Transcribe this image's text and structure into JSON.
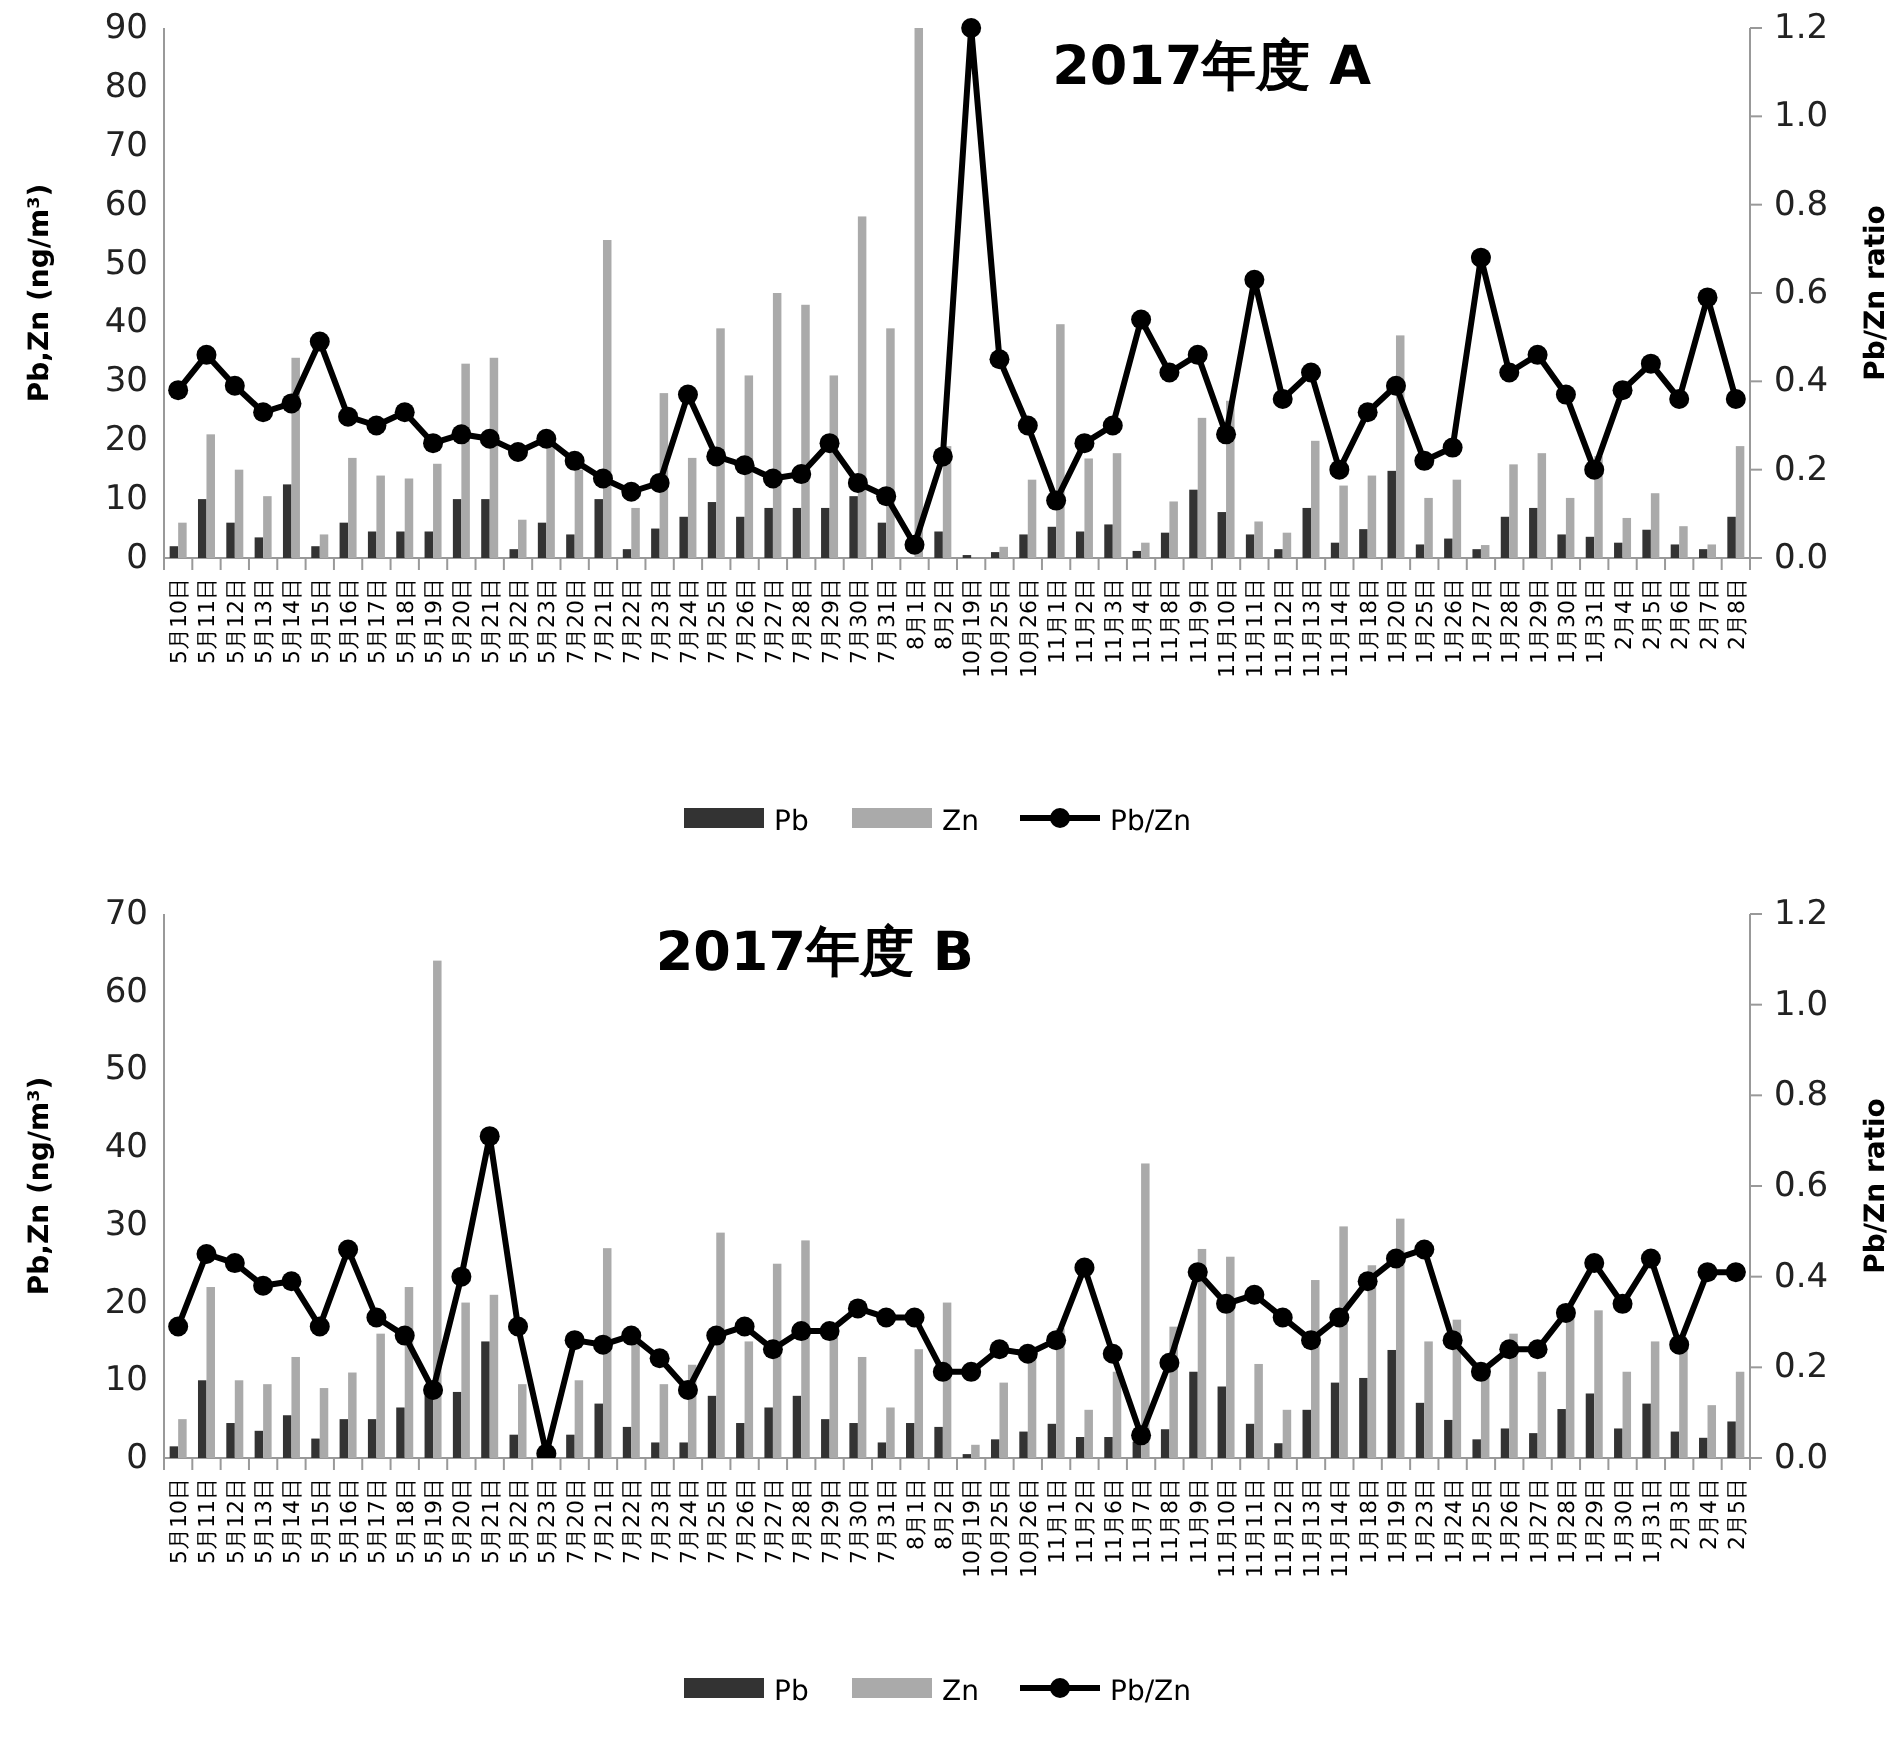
{
  "chart_data": [
    {
      "type": "bar",
      "title": "2017年度 A",
      "ylabel": "Pb,Zn (ng/m³)",
      "y2label": "Pb/Zn ratio",
      "legend": "bottom",
      "grid": false,
      "categories": [
        "5月10日",
        "5月11日",
        "5月12日",
        "5月13日",
        "5月14日",
        "5月15日",
        "5月16日",
        "5月17日",
        "5月18日",
        "5月19日",
        "5月20日",
        "5月21日",
        "5月22日",
        "5月23日",
        "7月20日",
        "7月21日",
        "7月22日",
        "7月23日",
        "7月24日",
        "7月25日",
        "7月26日",
        "7月27日",
        "7月28日",
        "7月29日",
        "7月30日",
        "7月31日",
        "8月1日",
        "8月2日",
        "10月19日",
        "10月25日",
        "10月26日",
        "11月1日",
        "11月2日",
        "11月3日",
        "11月4日",
        "11月8日",
        "11月9日",
        "11月10日",
        "11月11日",
        "11月12日",
        "11月13日",
        "11月14日",
        "1月18日",
        "1月20日",
        "1月25日",
        "1月26日",
        "1月27日",
        "1月28日",
        "1月29日",
        "1月30日",
        "1月31日",
        "2月4日",
        "2月5日",
        "2月6日",
        "2月7日",
        "2月8日"
      ],
      "ylim": [
        0,
        90
      ],
      "yticks": [
        0,
        10,
        20,
        30,
        40,
        50,
        60,
        70,
        80,
        90
      ],
      "y2lim": [
        0,
        1.2
      ],
      "y2ticks": [
        {
          "value": 0,
          "label": "0.0"
        },
        {
          "value": 0.2,
          "label": "0.2"
        },
        {
          "value": 0.4,
          "label": "0.4"
        },
        {
          "value": 0.6,
          "label": "0.6"
        },
        {
          "value": 0.8,
          "label": "0.8"
        },
        {
          "value": 1.0,
          "label": "1.0"
        },
        {
          "value": 1.2,
          "label": "1.2"
        }
      ],
      "series": [
        {
          "name": "Pb",
          "type": "bar",
          "color": "#333333",
          "values": [
            2,
            10,
            6,
            3.5,
            12.5,
            2,
            6,
            4.5,
            4.5,
            4.5,
            10,
            10,
            1.5,
            6,
            4,
            10,
            1.5,
            5,
            7,
            9.5,
            7,
            8.5,
            8.5,
            8.5,
            10.5,
            6,
            null,
            4.5,
            0.5,
            1,
            4,
            5.3,
            4.5,
            5.7,
            1.2,
            4.3,
            11.6,
            7.8,
            4,
            1.5,
            8.5,
            2.6,
            4.9,
            14.8,
            2.3,
            3.3,
            1.5,
            7,
            8.5,
            4,
            3.6,
            2.6,
            4.8,
            2.3,
            1.5,
            7
          ]
        },
        {
          "name": "Zn",
          "type": "bar",
          "color": "#aaaaaa",
          "values": [
            6,
            21,
            15,
            10.5,
            34,
            4,
            17,
            14,
            13.5,
            16,
            33,
            34,
            6.5,
            20,
            15,
            54,
            8.5,
            28,
            17,
            39,
            31,
            45,
            43,
            31,
            58,
            39,
            90,
            19,
            null,
            1.9,
            13.3,
            39.7,
            16.9,
            17.8,
            2.6,
            9.6,
            23.8,
            26.7,
            6.2,
            4.3,
            19.9,
            12.3,
            14,
            37.8,
            10.2,
            13.3,
            2.2,
            15.9,
            17.8,
            10.2,
            17.3,
            6.8,
            11,
            5.4,
            2.3,
            19
          ]
        },
        {
          "name": "Pb/Zn",
          "type": "line",
          "axis": "y2",
          "color": "#000000",
          "marker": "circle",
          "values": [
            0.38,
            0.46,
            0.39,
            0.33,
            0.35,
            0.49,
            0.32,
            0.3,
            0.33,
            0.26,
            0.28,
            0.27,
            0.24,
            0.27,
            0.22,
            0.18,
            0.15,
            0.17,
            0.37,
            0.23,
            0.21,
            0.18,
            0.19,
            0.26,
            0.17,
            0.14,
            0.03,
            0.23,
            1.2,
            0.45,
            0.3,
            0.13,
            0.26,
            0.3,
            0.54,
            0.42,
            0.46,
            0.28,
            0.63,
            0.36,
            0.42,
            0.2,
            0.33,
            0.39,
            0.22,
            0.25,
            0.68,
            0.42,
            0.46,
            0.37,
            0.2,
            0.38,
            0.44,
            0.36,
            0.59,
            0.36
          ]
        }
      ]
    },
    {
      "type": "bar",
      "title": "2017年度 B",
      "ylabel": "Pb,Zn (ng/m³)",
      "y2label": "Pb/Zn ratio",
      "legend": "bottom",
      "grid": false,
      "categories": [
        "5月10日",
        "5月11日",
        "5月12日",
        "5月13日",
        "5月14日",
        "5月15日",
        "5月16日",
        "5月17日",
        "5月18日",
        "5月19日",
        "5月20日",
        "5月21日",
        "5月22日",
        "5月23日",
        "7月20日",
        "7月21日",
        "7月22日",
        "7月23日",
        "7月24日",
        "7月25日",
        "7月26日",
        "7月27日",
        "7月28日",
        "7月29日",
        "7月30日",
        "7月31日",
        "8月1日",
        "8月2日",
        "10月19日",
        "10月25日",
        "10月26日",
        "11月1日",
        "11月2日",
        "11月6日",
        "11月7日",
        "11月8日",
        "11月9日",
        "11月10日",
        "11月11日",
        "11月12日",
        "11月13日",
        "11月14日",
        "1月18日",
        "1月19日",
        "1月23日",
        "1月24日",
        "1月25日",
        "1月26日",
        "1月27日",
        "1月28日",
        "1月29日",
        "1月30日",
        "1月31日",
        "2月3日",
        "2月4日",
        "2月5日"
      ],
      "ylim": [
        0,
        70
      ],
      "yticks": [
        0,
        10,
        20,
        30,
        40,
        50,
        60,
        70
      ],
      "y2lim": [
        0,
        1.2
      ],
      "y2ticks": [
        {
          "value": 0,
          "label": "0.0"
        },
        {
          "value": 0.2,
          "label": "0.2"
        },
        {
          "value": 0.4,
          "label": "0.4"
        },
        {
          "value": 0.6,
          "label": "0.6"
        },
        {
          "value": 0.8,
          "label": "0.8"
        },
        {
          "value": 1.0,
          "label": "1.0"
        },
        {
          "value": 1.2,
          "label": "1.2"
        }
      ],
      "series": [
        {
          "name": "Pb",
          "type": "bar",
          "color": "#333333",
          "values": [
            1.5,
            10,
            4.5,
            3.5,
            5.5,
            2.5,
            5,
            5,
            6.5,
            8.5,
            8.5,
            15,
            3,
            null,
            3,
            7,
            4,
            2,
            2,
            8,
            4.5,
            6.5,
            8,
            5,
            4.5,
            2,
            4.5,
            4,
            0.5,
            2.4,
            3.4,
            4.4,
            2.7,
            2.7,
            2.1,
            3.7,
            11.1,
            9.2,
            4.4,
            1.9,
            6.2,
            9.7,
            10.3,
            13.9,
            7.1,
            4.9,
            2.4,
            3.8,
            3.2,
            6.3,
            8.3,
            3.8,
            7,
            3.4,
            2.6,
            4.7
          ]
        },
        {
          "name": "Zn",
          "type": "bar",
          "color": "#aaaaaa",
          "values": [
            5,
            22,
            10,
            9.5,
            13,
            9,
            11,
            16,
            22,
            64,
            20,
            21,
            9.5,
            null,
            10,
            27,
            15,
            9.5,
            12,
            29,
            15,
            25,
            28,
            16,
            13,
            6.5,
            14,
            20,
            1.7,
            9.7,
            12.8,
            16.7,
            6.2,
            11.1,
            37.9,
            16.9,
            26.9,
            25.9,
            12.1,
            6.2,
            22.9,
            29.8,
            24.8,
            30.8,
            15,
            17.8,
            10.4,
            16,
            11.1,
            18.4,
            19,
            11.1,
            15,
            14.8,
            6.8,
            11.1
          ]
        },
        {
          "name": "Pb/Zn",
          "type": "line",
          "axis": "y2",
          "color": "#000000",
          "marker": "circle",
          "values": [
            0.29,
            0.45,
            0.43,
            0.38,
            0.39,
            0.29,
            0.46,
            0.31,
            0.27,
            0.15,
            0.4,
            0.71,
            0.29,
            0.01,
            0.26,
            0.25,
            0.27,
            0.22,
            0.15,
            0.27,
            0.29,
            0.24,
            0.28,
            0.28,
            0.33,
            0.31,
            0.31,
            0.19,
            0.19,
            0.24,
            0.23,
            0.26,
            0.42,
            0.23,
            0.05,
            0.21,
            0.41,
            0.34,
            0.36,
            0.31,
            0.26,
            0.31,
            0.39,
            0.44,
            0.46,
            0.26,
            0.19,
            0.24,
            0.24,
            0.32,
            0.43,
            0.34,
            0.44,
            0.25,
            0.41,
            0.41
          ]
        }
      ]
    }
  ]
}
